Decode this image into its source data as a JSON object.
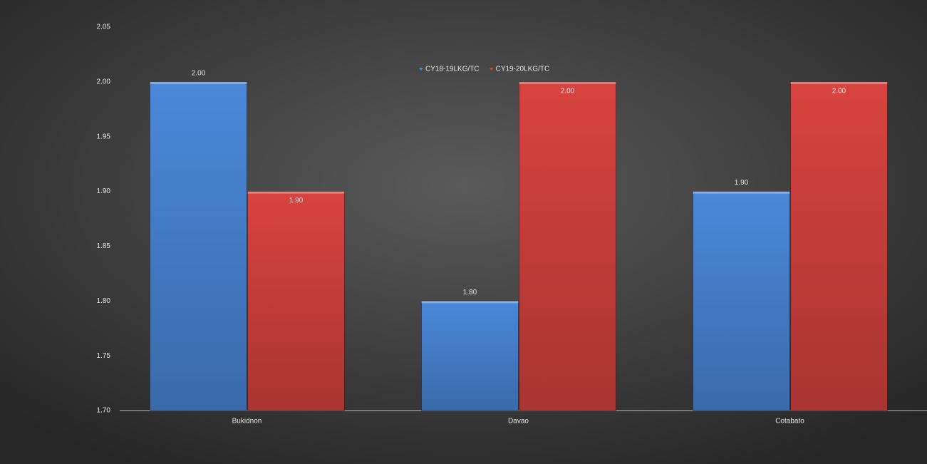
{
  "chart_data": {
    "type": "bar",
    "categories": [
      "Bukidnon",
      "Davao",
      "Cotabato"
    ],
    "series": [
      {
        "name": "CY18-19LKG/TC",
        "color": "#4a88da",
        "values": [
          2,
          1.8,
          1.9
        ],
        "value_labels": [
          "2.00",
          "1.80",
          "1.90"
        ]
      },
      {
        "name": "CY19-20LKG/TC",
        "color": "#d8433f",
        "values": [
          1.9,
          2,
          2
        ],
        "value_labels": [
          "1.90",
          "2.00",
          "2.00"
        ]
      }
    ],
    "ylim": [
      1.7,
      2.05
    ],
    "yticks": [
      {
        "value": 1.7,
        "label": "1.70"
      },
      1.75,
      {
        "value": 1.8,
        "label": "1.80"
      },
      1.85,
      {
        "value": 1.9,
        "label": "1.90"
      },
      1.95,
      {
        "value": 2,
        "label": "2.00"
      },
      2.05
    ],
    "grid": false,
    "legend": "top"
  }
}
